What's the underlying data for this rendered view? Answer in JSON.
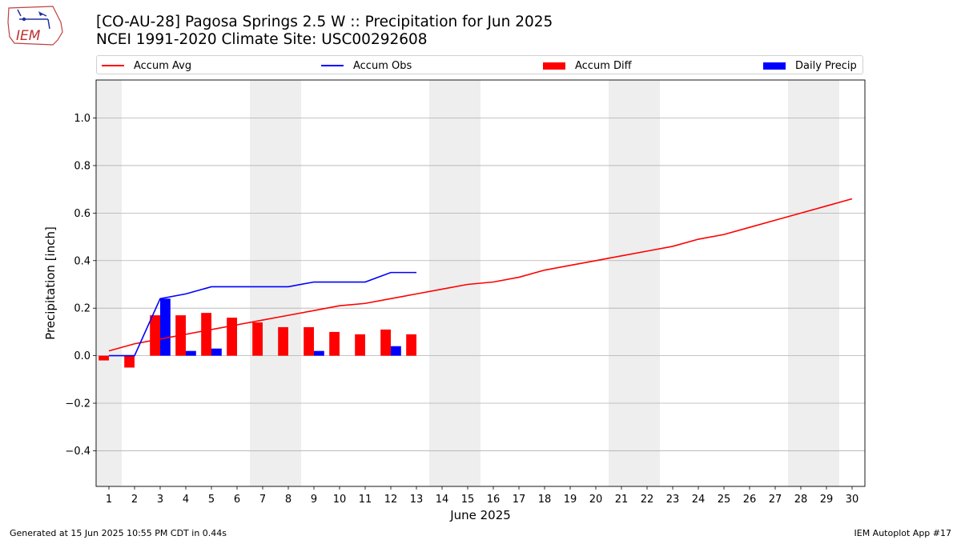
{
  "header": {
    "title_line1": "[CO-AU-28] Pagosa Springs 2.5 W :: Precipitation for Jun 2025",
    "title_line2": "NCEI 1991-2020 Climate Site: USC00292608"
  },
  "logo": {
    "text": "IEM"
  },
  "legend": [
    {
      "label": "Accum Avg",
      "kind": "line",
      "color": "#ff0000"
    },
    {
      "label": "Accum Obs",
      "kind": "line",
      "color": "#0000ff"
    },
    {
      "label": "Accum Diff",
      "kind": "bar",
      "color": "#ff0000"
    },
    {
      "label": "Daily Precip",
      "kind": "bar",
      "color": "#0000ff"
    }
  ],
  "footer": {
    "generated": "Generated at 15 Jun 2025 10:55 PM CDT in 0.44s",
    "app": "IEM Autoplot App #17"
  },
  "colors": {
    "avg": "#ff0000",
    "obs": "#0000ff",
    "weekend_shade": "#eeeeee",
    "grid": "#b0b0b0"
  },
  "chart_data": {
    "type": "bar",
    "xlabel": "June 2025",
    "ylabel": "Precipitation [inch]",
    "xlim": [
      0.5,
      30.5
    ],
    "ylim": [
      -0.55,
      1.16
    ],
    "grid": true,
    "legend_position": "top",
    "x": [
      1,
      2,
      3,
      4,
      5,
      6,
      7,
      8,
      9,
      10,
      11,
      12,
      13,
      14,
      15,
      16,
      17,
      18,
      19,
      20,
      21,
      22,
      23,
      24,
      25,
      26,
      27,
      28,
      29,
      30
    ],
    "y_ticks": [
      -0.4,
      -0.2,
      0.0,
      0.2,
      0.4,
      0.6,
      0.8,
      1.0
    ],
    "y_tick_labels": [
      "−0.4",
      "−0.2",
      "0.0",
      "0.2",
      "0.4",
      "0.6",
      "0.8",
      "1.0"
    ],
    "weekend_days": [
      1,
      7,
      8,
      14,
      15,
      21,
      22,
      28,
      29
    ],
    "series": [
      {
        "name": "Accum Avg",
        "kind": "line",
        "x": [
          1,
          2,
          3,
          4,
          5,
          6,
          7,
          8,
          9,
          10,
          11,
          12,
          13,
          14,
          15,
          16,
          17,
          18,
          19,
          20,
          21,
          22,
          23,
          24,
          25,
          26,
          27,
          28,
          29,
          30
        ],
        "values": [
          0.02,
          0.05,
          0.07,
          0.09,
          0.11,
          0.13,
          0.15,
          0.17,
          0.19,
          0.21,
          0.22,
          0.24,
          0.26,
          0.28,
          0.3,
          0.31,
          0.33,
          0.36,
          0.38,
          0.4,
          0.42,
          0.44,
          0.46,
          0.49,
          0.51,
          0.54,
          0.57,
          0.6,
          0.63,
          0.66
        ]
      },
      {
        "name": "Accum Obs",
        "kind": "line",
        "x": [
          1,
          2,
          3,
          4,
          5,
          6,
          7,
          8,
          9,
          10,
          11,
          12,
          13
        ],
        "values": [
          0.0,
          0.0,
          0.24,
          0.26,
          0.29,
          0.29,
          0.29,
          0.29,
          0.31,
          0.31,
          0.31,
          0.35,
          0.35
        ]
      },
      {
        "name": "Accum Diff",
        "kind": "bar",
        "x": [
          1,
          2,
          3,
          4,
          5,
          6,
          7,
          8,
          9,
          10,
          11,
          12,
          13
        ],
        "values": [
          -0.02,
          -0.05,
          0.17,
          0.17,
          0.18,
          0.16,
          0.14,
          0.12,
          0.12,
          0.1,
          0.09,
          0.11,
          0.09
        ]
      },
      {
        "name": "Daily Precip",
        "kind": "bar",
        "x": [
          1,
          2,
          3,
          4,
          5,
          6,
          7,
          8,
          9,
          10,
          11,
          12,
          13
        ],
        "values": [
          0.0,
          0.0,
          0.24,
          0.02,
          0.03,
          0.0,
          0.0,
          0.0,
          0.02,
          0.0,
          0.0,
          0.04,
          0.0
        ]
      }
    ]
  }
}
